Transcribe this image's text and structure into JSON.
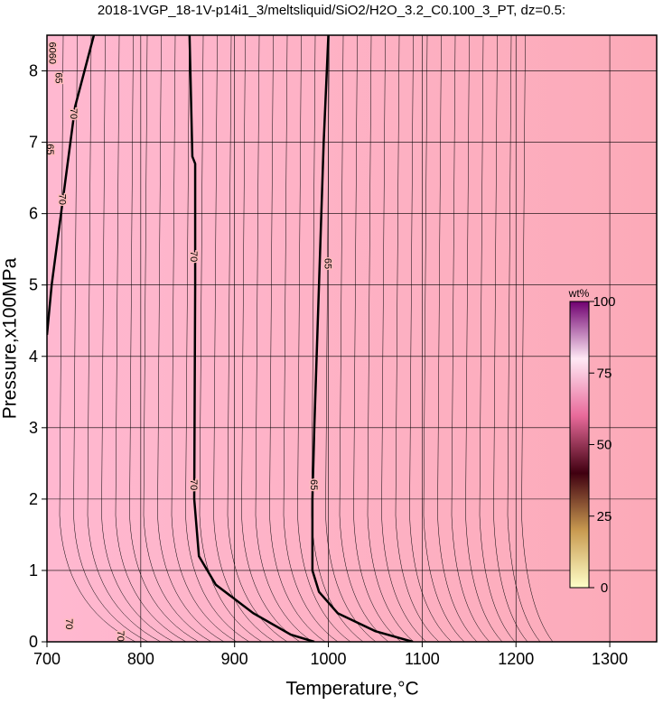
{
  "chart_data": {
    "type": "contour",
    "title": "2018-1VGP_18-1V-p14i1_3/meltsliquid/SiO2/H2O_3.2_C0.100_3_PT, dz=0.5:",
    "x_label": "Temperature,°C",
    "y_label": "Pressure,x100MPa",
    "xlim": [
      700,
      1350
    ],
    "ylim": [
      0,
      8.5
    ],
    "xticks": [
      700,
      800,
      900,
      1000,
      1100,
      1200,
      1300
    ],
    "yticks": [
      0,
      1,
      2,
      3,
      4,
      5,
      6,
      7,
      8
    ],
    "grid": true,
    "background_colors": [
      "#ffb8d0",
      "#fcaab8"
    ],
    "contours": [
      {
        "level": 70,
        "x": [
          852,
          855,
          858,
          858,
          857,
          862,
          880,
          920,
          960,
          985
        ],
        "y": [
          8.5,
          6.8,
          6.7,
          5,
          2,
          1.2,
          0.8,
          0.4,
          0.1,
          0
        ]
      },
      {
        "level": 65,
        "x": [
          1000,
          995,
          990,
          985,
          983,
          983,
          990,
          1010,
          1050,
          1090
        ],
        "y": [
          8.5,
          7,
          5,
          3,
          2,
          1,
          0.7,
          0.4,
          0.15,
          0
        ]
      },
      {
        "level": 70,
        "x": [
          750,
          730,
          715,
          705,
          700
        ],
        "y": [
          8.5,
          7.5,
          6,
          5,
          4.3
        ]
      }
    ],
    "contour_labels": [
      {
        "text": "70",
        "x": 856,
        "y": 5.4
      },
      {
        "text": "70",
        "x": 856,
        "y": 2.2
      },
      {
        "text": "65",
        "x": 999,
        "y": 5.3
      },
      {
        "text": "65",
        "x": 984,
        "y": 2.2
      },
      {
        "text": "70",
        "x": 723,
        "y": 0.25
      },
      {
        "text": "70",
        "x": 778,
        "y": 0.08
      },
      {
        "text": "65",
        "x": 712,
        "y": 7.9
      },
      {
        "text": "65",
        "x": 703,
        "y": 6.9
      },
      {
        "text": "70",
        "x": 728,
        "y": 7.4
      },
      {
        "text": "70",
        "x": 716,
        "y": 6.2
      },
      {
        "text": "6060",
        "x": 705,
        "y": 8.25
      }
    ],
    "colorbar": {
      "label": "wt%",
      "lim": [
        0,
        100
      ],
      "ticks": [
        0,
        25,
        50,
        75,
        100
      ],
      "colors": [
        "#ffffc8",
        "#c89a50",
        "#400010",
        "#e86a9a",
        "#ffe8f4",
        "#700070"
      ]
    }
  }
}
